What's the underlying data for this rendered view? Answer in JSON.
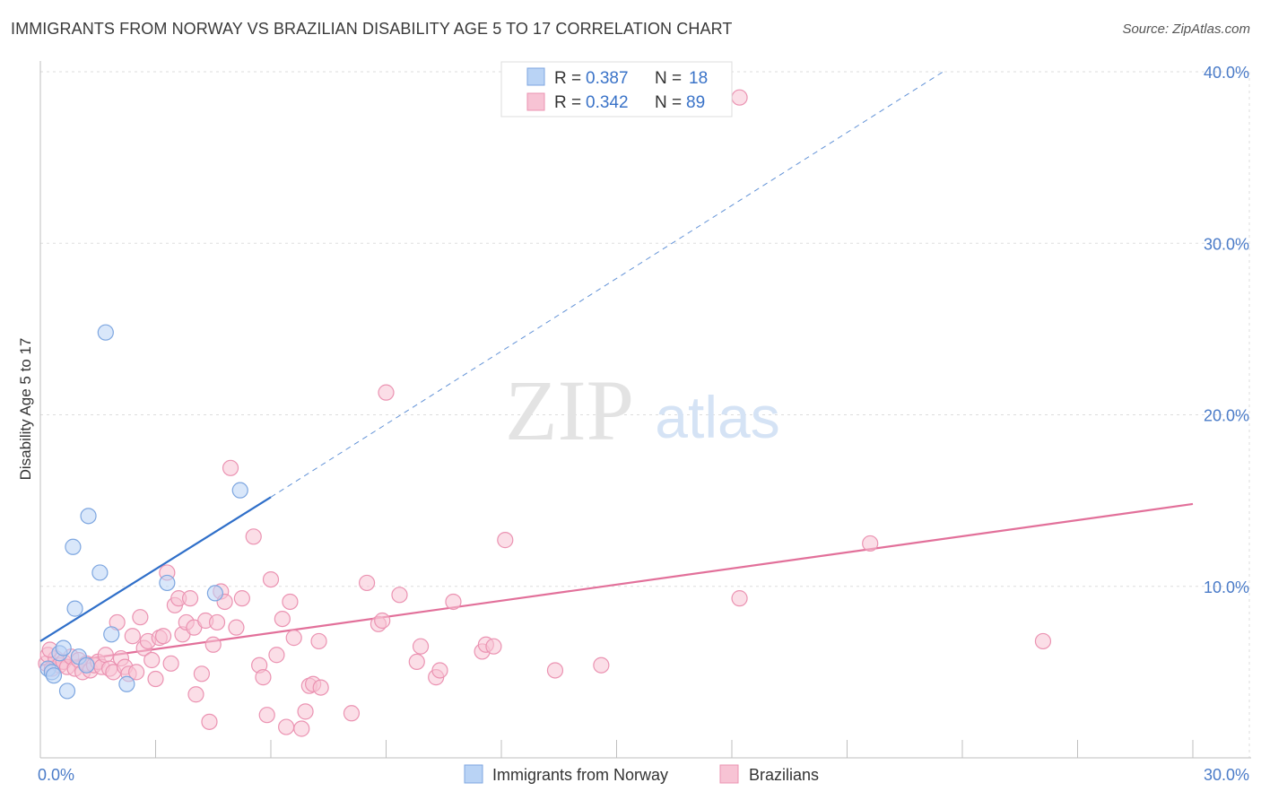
{
  "title": "IMMIGRANTS FROM NORWAY VS BRAZILIAN DISABILITY AGE 5 TO 17 CORRELATION CHART",
  "source": "Source: ZipAtlas.com",
  "watermark": {
    "zip": "ZIP",
    "atlas": "atlas"
  },
  "colors": {
    "norway_fill": "#b9d3f5",
    "norway_stroke": "#7da6e0",
    "norway_line": "#2f6fc9",
    "brazil_fill": "#f7c3d4",
    "brazil_stroke": "#eb93b2",
    "brazil_line": "#e2709a",
    "tick": "#4a7bc8",
    "grid": "#dddddd"
  },
  "legend": {
    "items": [
      {
        "r_label": "R =",
        "r_value": "0.387",
        "n_label": "N =",
        "n_value": "18"
      },
      {
        "r_label": "R =",
        "r_value": "0.342",
        "n_label": "N =",
        "n_value": "89"
      }
    ]
  },
  "chart_data": {
    "type": "scatter",
    "title": "IMMIGRANTS FROM NORWAY VS BRAZILIAN DISABILITY AGE 5 TO 17 CORRELATION CHART",
    "xlabel": "",
    "ylabel": "Disability Age 5 to 17",
    "xlim": [
      0,
      30
    ],
    "ylim": [
      0,
      40
    ],
    "x_tick_labels": [
      "0.0%",
      "30.0%"
    ],
    "y_ticks": [
      10,
      20,
      30,
      40
    ],
    "y_tick_labels": [
      "10.0%",
      "20.0%",
      "30.0%",
      "40.0%"
    ],
    "legend": [
      "Immigrants from Norway",
      "Brazilians"
    ],
    "series": [
      {
        "name": "Immigrants from Norway",
        "r": 0.387,
        "n": 18,
        "trend": {
          "x0": 0,
          "y0": 6.8,
          "x1": 6.0,
          "y1": 15.2,
          "dash_to_x": 23.5,
          "dash_to_y": 40.0
        },
        "points": [
          [
            0.2,
            5.2
          ],
          [
            0.3,
            5.0
          ],
          [
            0.35,
            4.8
          ],
          [
            0.5,
            6.1
          ],
          [
            0.6,
            6.4
          ],
          [
            0.7,
            3.9
          ],
          [
            1.0,
            5.9
          ],
          [
            1.2,
            5.4
          ],
          [
            0.9,
            8.7
          ],
          [
            0.85,
            12.3
          ],
          [
            1.25,
            14.1
          ],
          [
            1.55,
            10.8
          ],
          [
            1.85,
            7.2
          ],
          [
            1.7,
            24.8
          ],
          [
            2.25,
            4.3
          ],
          [
            3.3,
            10.2
          ],
          [
            4.55,
            9.6
          ],
          [
            5.2,
            15.6
          ]
        ]
      },
      {
        "name": "Brazilians",
        "r": 0.342,
        "n": 89,
        "trend": {
          "x0": 0,
          "y0": 5.4,
          "x1": 30.0,
          "y1": 14.8
        },
        "points": [
          [
            0.15,
            5.5
          ],
          [
            0.2,
            6.0
          ],
          [
            0.3,
            5.2
          ],
          [
            0.4,
            5.8
          ],
          [
            0.5,
            5.4
          ],
          [
            0.6,
            5.6
          ],
          [
            0.7,
            5.3
          ],
          [
            0.8,
            5.9
          ],
          [
            0.9,
            5.2
          ],
          [
            1.0,
            5.7
          ],
          [
            1.1,
            5.0
          ],
          [
            1.2,
            5.5
          ],
          [
            1.3,
            5.1
          ],
          [
            1.4,
            5.4
          ],
          [
            1.5,
            5.6
          ],
          [
            1.6,
            5.3
          ],
          [
            1.7,
            6.0
          ],
          [
            1.8,
            5.2
          ],
          [
            1.9,
            5.0
          ],
          [
            2.0,
            7.9
          ],
          [
            2.1,
            5.8
          ],
          [
            2.2,
            5.3
          ],
          [
            2.3,
            4.9
          ],
          [
            2.4,
            7.1
          ],
          [
            2.5,
            5.0
          ],
          [
            2.6,
            8.2
          ],
          [
            2.7,
            6.4
          ],
          [
            2.8,
            6.8
          ],
          [
            2.9,
            5.7
          ],
          [
            3.0,
            4.6
          ],
          [
            3.1,
            7.0
          ],
          [
            3.2,
            7.1
          ],
          [
            3.3,
            10.8
          ],
          [
            3.4,
            5.5
          ],
          [
            3.5,
            8.9
          ],
          [
            3.6,
            9.3
          ],
          [
            3.7,
            7.2
          ],
          [
            3.8,
            7.9
          ],
          [
            3.9,
            9.3
          ],
          [
            4.0,
            7.6
          ],
          [
            4.05,
            3.7
          ],
          [
            4.2,
            4.9
          ],
          [
            4.3,
            8.0
          ],
          [
            4.4,
            2.1
          ],
          [
            4.5,
            6.6
          ],
          [
            4.6,
            7.9
          ],
          [
            4.7,
            9.7
          ],
          [
            4.8,
            9.1
          ],
          [
            4.95,
            16.9
          ],
          [
            5.1,
            7.6
          ],
          [
            5.25,
            9.3
          ],
          [
            5.55,
            12.9
          ],
          [
            5.7,
            5.4
          ],
          [
            5.8,
            4.7
          ],
          [
            5.9,
            2.5
          ],
          [
            6.0,
            10.4
          ],
          [
            6.15,
            6.0
          ],
          [
            6.3,
            8.1
          ],
          [
            6.4,
            1.8
          ],
          [
            6.5,
            9.1
          ],
          [
            6.6,
            7.0
          ],
          [
            6.8,
            1.7
          ],
          [
            6.9,
            2.7
          ],
          [
            7.0,
            4.2
          ],
          [
            7.1,
            4.3
          ],
          [
            7.25,
            6.8
          ],
          [
            7.3,
            4.1
          ],
          [
            8.1,
            2.6
          ],
          [
            8.5,
            10.2
          ],
          [
            8.8,
            7.8
          ],
          [
            8.9,
            8.0
          ],
          [
            9.0,
            21.3
          ],
          [
            9.35,
            9.5
          ],
          [
            9.8,
            5.6
          ],
          [
            9.9,
            6.5
          ],
          [
            10.3,
            4.7
          ],
          [
            10.4,
            5.1
          ],
          [
            10.75,
            9.1
          ],
          [
            11.5,
            6.2
          ],
          [
            11.6,
            6.6
          ],
          [
            11.8,
            6.5
          ],
          [
            12.1,
            12.7
          ],
          [
            13.4,
            5.1
          ],
          [
            14.6,
            5.4
          ],
          [
            18.2,
            9.3
          ],
          [
            18.2,
            38.5
          ],
          [
            21.6,
            12.5
          ],
          [
            26.1,
            6.8
          ],
          [
            0.25,
            6.3
          ]
        ]
      }
    ]
  }
}
